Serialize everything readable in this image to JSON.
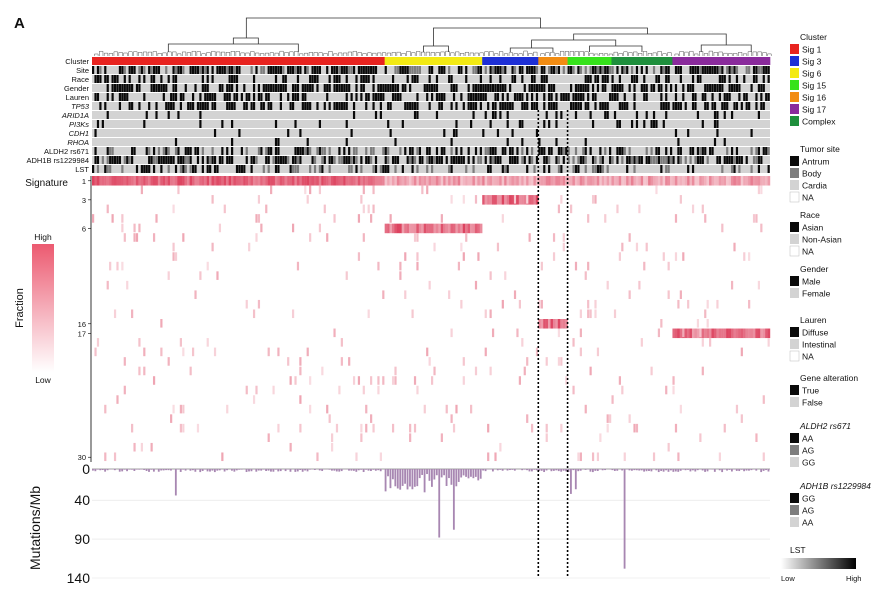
{
  "panel_label": "A",
  "colors": {
    "sig1": "#e8231f",
    "sig3": "#1d2fd6",
    "sig6": "#f3ea13",
    "sig15": "#35e21a",
    "sig16": "#f28c12",
    "sig17": "#8a2a9c",
    "complex": "#1e8f3c",
    "heat_high": "#d9304f",
    "heat_mid": "#f1a7b5",
    "heat_low": "#fcecef",
    "mutation_bar": "#a887b2",
    "track_black": "#0a0a0a",
    "track_gray": "#7d7d7d",
    "track_light": "#d3d3d3"
  },
  "chart_data": {
    "type": "heatmap",
    "track_labels": [
      "Cluster",
      "Site",
      "Race",
      "Gender",
      "Lauren",
      "TP53",
      "ARID1A",
      "PI3Ks",
      "CDH1",
      "RHOA",
      "ALDH2 rs671",
      "ADH1B rs1229984",
      "LST"
    ],
    "heatmap_title": "Signature",
    "signature_ticks": [
      "1",
      "3",
      "6",
      "16",
      "17",
      "30"
    ],
    "signature_tick_values": [
      1,
      3,
      6,
      16,
      17,
      30
    ],
    "fraction_label": "Fraction",
    "fraction_high": "High",
    "fraction_low": "Low",
    "cluster_order": [
      "Sig 1",
      "Sig 6",
      "Sig 3",
      "Sig 16",
      "Sig 15",
      "Complex",
      "Sig 17"
    ],
    "cluster_sizes": [
      120,
      40,
      23,
      12,
      18,
      25,
      40
    ],
    "mutations_ylabel": "Mutations/Mb",
    "mutations_yticks": [
      "0",
      "40",
      "90",
      "140"
    ],
    "mutations_ytick_values": [
      0,
      40,
      90,
      140
    ],
    "mutations_ylim": [
      0,
      140
    ]
  },
  "legend": {
    "sections": [
      {
        "title": "Cluster",
        "items": [
          {
            "label": "Sig 1",
            "color": "#e8231f"
          },
          {
            "label": "Sig 3",
            "color": "#1d2fd6"
          },
          {
            "label": "Sig 6",
            "color": "#f3ea13"
          },
          {
            "label": "Sig 15",
            "color": "#35e21a"
          },
          {
            "label": "Sig 16",
            "color": "#f28c12"
          },
          {
            "label": "Sig 17",
            "color": "#8a2a9c"
          },
          {
            "label": "Complex",
            "color": "#1e8f3c"
          }
        ]
      },
      {
        "title": "Tumor site",
        "items": [
          {
            "label": "Antrum",
            "color": "#0a0a0a"
          },
          {
            "label": "Body",
            "color": "#7d7d7d"
          },
          {
            "label": "Cardia",
            "color": "#d3d3d3"
          },
          {
            "label": "NA",
            "color": "#ffffff"
          }
        ]
      },
      {
        "title": "Race",
        "items": [
          {
            "label": "Asian",
            "color": "#0a0a0a"
          },
          {
            "label": "Non-Asian",
            "color": "#d3d3d3"
          },
          {
            "label": "NA",
            "color": "#ffffff"
          }
        ]
      },
      {
        "title": "Gender",
        "items": [
          {
            "label": "Male",
            "color": "#0a0a0a"
          },
          {
            "label": "Female",
            "color": "#d3d3d3"
          }
        ]
      },
      {
        "title": "Lauren",
        "items": [
          {
            "label": "Diffuse",
            "color": "#0a0a0a"
          },
          {
            "label": "Intestinal",
            "color": "#d3d3d3"
          },
          {
            "label": "NA",
            "color": "#ffffff"
          }
        ]
      },
      {
        "title": "Gene alteration",
        "items": [
          {
            "label": "True",
            "color": "#0a0a0a"
          },
          {
            "label": "False",
            "color": "#d3d3d3"
          }
        ]
      },
      {
        "title": "ALDH2 rs671",
        "items": [
          {
            "label": "AA",
            "color": "#0a0a0a"
          },
          {
            "label": "AG",
            "color": "#7d7d7d"
          },
          {
            "label": "GG",
            "color": "#d3d3d3"
          }
        ]
      },
      {
        "title": "ADH1B rs1229984",
        "items": [
          {
            "label": "GG",
            "color": "#0a0a0a"
          },
          {
            "label": "AG",
            "color": "#7d7d7d"
          },
          {
            "label": "AA",
            "color": "#d3d3d3"
          }
        ]
      }
    ],
    "lst_title": "LST",
    "lst_low": "Low",
    "lst_high": "High"
  }
}
